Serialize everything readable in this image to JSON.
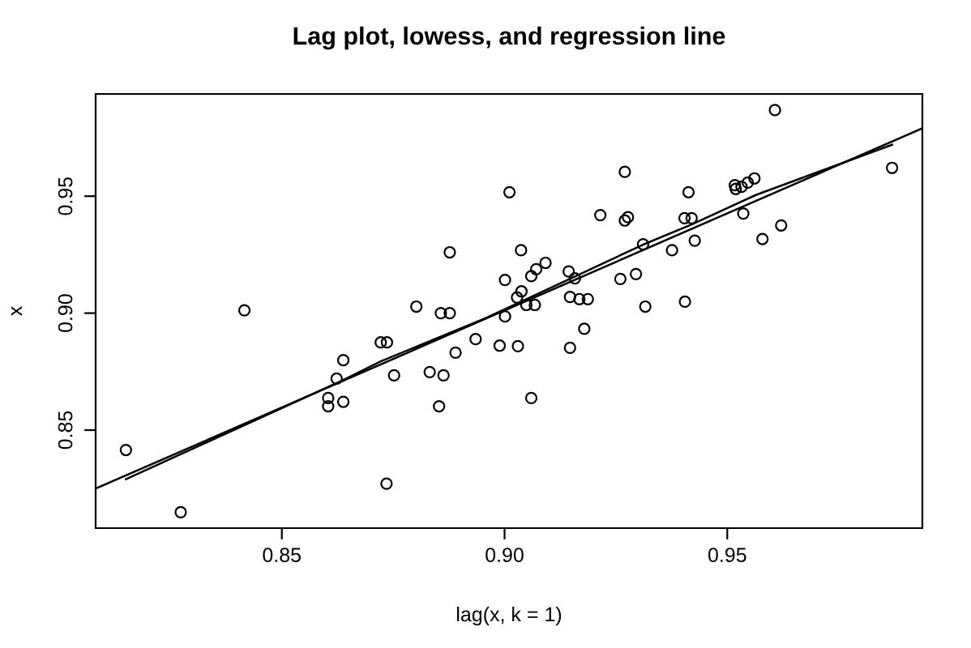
{
  "chart_data": {
    "type": "scatter",
    "title": "Lag plot, lowess, and regression line",
    "xlabel": "lag(x, k = 1)",
    "ylabel": "x",
    "xlim": [
      0.8082,
      0.9938
    ],
    "ylim": [
      0.8081,
      0.9937
    ],
    "xticks": [
      0.85,
      {
        "value": 0.9,
        "label": "0.90"
      },
      0.95
    ],
    "yticks": [
      0.85,
      {
        "value": 0.9,
        "label": "0.90"
      },
      0.95
    ],
    "grid": false,
    "legend": false,
    "marker": "circle",
    "series": [
      {
        "color": "#000000",
        "x": [
          0.815,
          0.8273,
          0.8416,
          0.8604,
          0.8604,
          0.8623,
          0.8638,
          0.8638,
          0.8722,
          0.8736,
          0.8752,
          0.8735,
          0.8802,
          0.8832,
          0.8857,
          0.8877,
          0.8877,
          0.8863,
          0.8853,
          0.889,
          0.8935,
          0.8989,
          0.9001,
          0.9001,
          0.9011,
          0.9607,
          0.987,
          0.927,
          0.9413,
          0.9517,
          0.9519,
          0.9532,
          0.9546,
          0.9561,
          0.9215,
          0.927,
          0.9277,
          0.9404,
          0.942,
          0.9536,
          0.9621,
          0.9579,
          0.9427,
          0.9311,
          0.9376,
          0.9037,
          0.9092,
          0.9071,
          0.906,
          0.9144,
          0.9158,
          0.926,
          0.9295,
          0.9038,
          0.9028,
          0.9049,
          0.9068,
          0.9147,
          0.9168,
          0.9187,
          0.9405,
          0.9316,
          0.9179,
          0.903,
          0.9147,
          0.906
        ],
        "values": [
          0.8415,
          0.8149,
          0.9012,
          0.8637,
          0.8602,
          0.872,
          0.8799,
          0.8621,
          0.8875,
          0.8875,
          0.8734,
          0.8271,
          0.9028,
          0.8748,
          0.9,
          0.9,
          0.926,
          0.8734,
          0.8602,
          0.8831,
          0.8889,
          0.8861,
          0.9142,
          0.8986,
          0.9517,
          0.9868,
          0.9621,
          0.9604,
          0.9517,
          0.9547,
          0.9531,
          0.954,
          0.9558,
          0.9576,
          0.9419,
          0.9396,
          0.941,
          0.9406,
          0.9406,
          0.9426,
          0.9375,
          0.9317,
          0.931,
          0.9294,
          0.9269,
          0.9269,
          0.9215,
          0.9188,
          0.9158,
          0.9178,
          0.9149,
          0.9146,
          0.9167,
          0.9093,
          0.9067,
          0.9035,
          0.9035,
          0.9069,
          0.906,
          0.906,
          0.9049,
          0.9028,
          0.8933,
          0.8859,
          0.8852,
          0.8637
        ]
      },
      {
        "type": "line",
        "color": "#000000",
        "marker": "none",
        "line_style": "solid",
        "x": [
          0.815,
          0.8637,
          0.8722,
          0.8958,
          0.931,
          0.9419,
          0.9564,
          0.987
        ],
        "values": [
          0.829,
          0.8713,
          0.8794,
          0.8979,
          0.9292,
          0.9378,
          0.9505,
          0.972
        ]
      },
      {
        "type": "line",
        "color": "#000000",
        "marker": "none",
        "line_style": "solid",
        "x": [
          0.8082,
          0.9938
        ],
        "values": [
          0.825,
          0.979
        ]
      }
    ]
  }
}
